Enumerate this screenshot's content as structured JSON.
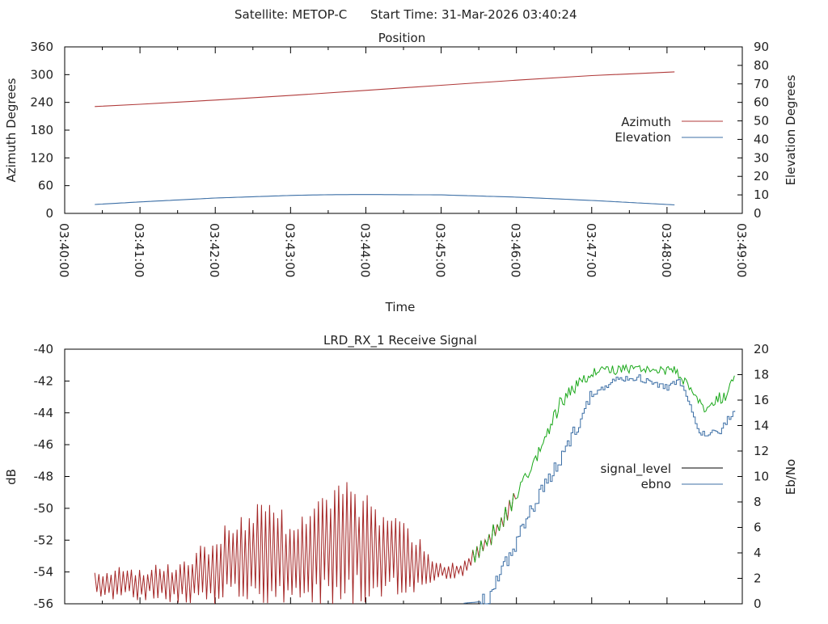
{
  "header": {
    "satellite": "Satellite: METOP-C",
    "start_time": "Start Time: 31-Mar-2026 03:40:24"
  },
  "colors": {
    "azimuth": "#b03a3a",
    "elevation": "#3c6fa6",
    "signal_red": "#a42626",
    "signal_green": "#1aa81a",
    "ebno": "#3c6fa6",
    "signal_legend": "#000000"
  },
  "chart_data": [
    {
      "type": "line",
      "title": "Position",
      "xlabel": "Time",
      "ylabel": "Azimuth Degrees",
      "y2label": "Elevation Degrees",
      "x_ticks": [
        "03:40:00",
        "03:41:00",
        "03:42:00",
        "03:43:00",
        "03:44:00",
        "03:45:00",
        "03:46:00",
        "03:47:00",
        "03:48:00",
        "03:49:00"
      ],
      "x_tick_minutes": [
        0,
        1,
        2,
        3,
        4,
        5,
        6,
        7,
        8,
        9
      ],
      "xlim": [
        0,
        9
      ],
      "ylim": [
        0,
        360
      ],
      "y_ticks": [
        "0",
        "60",
        "120",
        "180",
        "240",
        "300",
        "360"
      ],
      "y_tick_values": [
        0,
        60,
        120,
        180,
        240,
        300,
        360
      ],
      "y2lim": [
        0,
        90
      ],
      "y2_ticks": [
        "0",
        "10",
        "20",
        "30",
        "40",
        "50",
        "60",
        "70",
        "80",
        "90"
      ],
      "y2_tick_values": [
        0,
        10,
        20,
        30,
        40,
        50,
        60,
        70,
        80,
        90
      ],
      "legend_position": "right",
      "series": [
        {
          "name": "Azimuth",
          "axis": "y",
          "x": [
            0.4,
            1.0,
            2.0,
            3.0,
            4.0,
            5.0,
            6.0,
            7.0,
            8.1
          ],
          "values": [
            231,
            236,
            245,
            255,
            266,
            277,
            288,
            298,
            306
          ]
        },
        {
          "name": "Elevation",
          "axis": "y2",
          "x": [
            0.4,
            1.0,
            2.0,
            3.0,
            3.5,
            4.0,
            5.0,
            6.0,
            7.0,
            8.1
          ],
          "values": [
            4.8,
            6.2,
            8.3,
            9.7,
            10.1,
            10.2,
            10.0,
            8.8,
            7.0,
            4.6
          ]
        }
      ]
    },
    {
      "type": "line",
      "title": "LRD_RX_1 Receive Signal",
      "ylabel": "dB",
      "y2label": "Eb/No",
      "xlim": [
        0,
        9
      ],
      "ylim": [
        -56,
        -40
      ],
      "y_ticks": [
        "-56",
        "-54",
        "-52",
        "-50",
        "-48",
        "-46",
        "-44",
        "-42",
        "-40"
      ],
      "y_tick_values": [
        -56,
        -54,
        -52,
        -50,
        -48,
        -46,
        -44,
        -42,
        -40
      ],
      "y2lim": [
        0,
        20
      ],
      "y2_ticks": [
        "0",
        "2",
        "4",
        "6",
        "8",
        "10",
        "12",
        "14",
        "16",
        "18",
        "20"
      ],
      "y2_tick_values": [
        0,
        2,
        4,
        6,
        8,
        10,
        12,
        14,
        16,
        18,
        20
      ],
      "legend_position": "right",
      "series": [
        {
          "name": "signal_level",
          "axis": "y",
          "x": [
            0.4,
            1.5,
            1.9,
            2.5,
            3.0,
            3.8,
            4.3,
            4.6,
            5.0,
            5.3,
            5.5,
            5.8,
            6.0,
            6.2,
            6.6,
            7.0,
            7.5,
            7.8,
            8.1,
            8.3,
            8.5,
            8.8,
            8.9
          ],
          "envelope_low": [
            -55.4,
            -55.6,
            -55.5,
            -55.3,
            -55.2,
            -55.2,
            -55.0,
            -54.8,
            -54.4,
            -54.2,
            -53.0,
            -51.5,
            -49.5,
            -47.8,
            -43.8,
            -41.8,
            -41.5,
            -41.5,
            -41.8,
            -42.7,
            -44.0,
            -43.2,
            -42.0
          ],
          "envelope_high": [
            -54.0,
            -53.8,
            -52.5,
            -50.3,
            -51.0,
            -49.2,
            -51.0,
            -51.8,
            -53.6,
            -53.5,
            -52.3,
            -50.5,
            -48.5,
            -47.2,
            -42.7,
            -41.1,
            -40.9,
            -41.1,
            -40.8,
            -42.2,
            -43.6,
            -42.2,
            -41.5
          ],
          "green_from_minute": 5.4
        },
        {
          "name": "ebno",
          "axis": "y2",
          "x": [
            5.3,
            5.4,
            5.6,
            5.7,
            5.8,
            6.0,
            6.2,
            6.5,
            6.8,
            7.0,
            7.3,
            7.6,
            7.8,
            8.0,
            8.15,
            8.3,
            8.4,
            8.5,
            8.55,
            8.7,
            8.8,
            8.9
          ],
          "values": [
            0.05,
            0.1,
            0.2,
            1.5,
            2.5,
            5.0,
            7.5,
            10.5,
            14.0,
            16.5,
            17.6,
            17.8,
            17.3,
            17.0,
            17.5,
            15.6,
            13.6,
            13.3,
            13.4,
            13.6,
            14.5,
            15.2
          ]
        }
      ]
    }
  ]
}
